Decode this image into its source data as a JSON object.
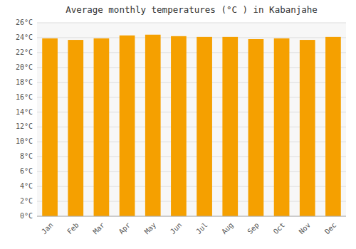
{
  "chart_data": {
    "type": "bar",
    "title": "Average monthly temperatures (°C ) in Kabanjahe",
    "categories": [
      "Jan",
      "Feb",
      "Mar",
      "Apr",
      "May",
      "Jun",
      "Jul",
      "Aug",
      "Sep",
      "Oct",
      "Nov",
      "Dec"
    ],
    "values": [
      23.9,
      23.7,
      23.9,
      24.3,
      24.4,
      24.2,
      24.1,
      24.1,
      23.8,
      23.9,
      23.7,
      24.1
    ],
    "color": "#F5A000",
    "ylim": [
      0,
      26
    ],
    "yticks": [
      {
        "value": 0,
        "label": "0°C"
      },
      {
        "value": 2,
        "label": "2°C"
      },
      {
        "value": 4,
        "label": "4°C"
      },
      {
        "value": 6,
        "label": "6°C"
      },
      {
        "value": 8,
        "label": "8°C"
      },
      {
        "value": 10,
        "label": "10°C"
      },
      {
        "value": 12,
        "label": "12°C"
      },
      {
        "value": 14,
        "label": "14°C"
      },
      {
        "value": 16,
        "label": "16°C"
      },
      {
        "value": 18,
        "label": "18°C"
      },
      {
        "value": 20,
        "label": "20°C"
      },
      {
        "value": 22,
        "label": "22°C"
      },
      {
        "value": 24,
        "label": "24°C"
      },
      {
        "value": 26,
        "label": "26°C"
      }
    ],
    "grid": true
  }
}
